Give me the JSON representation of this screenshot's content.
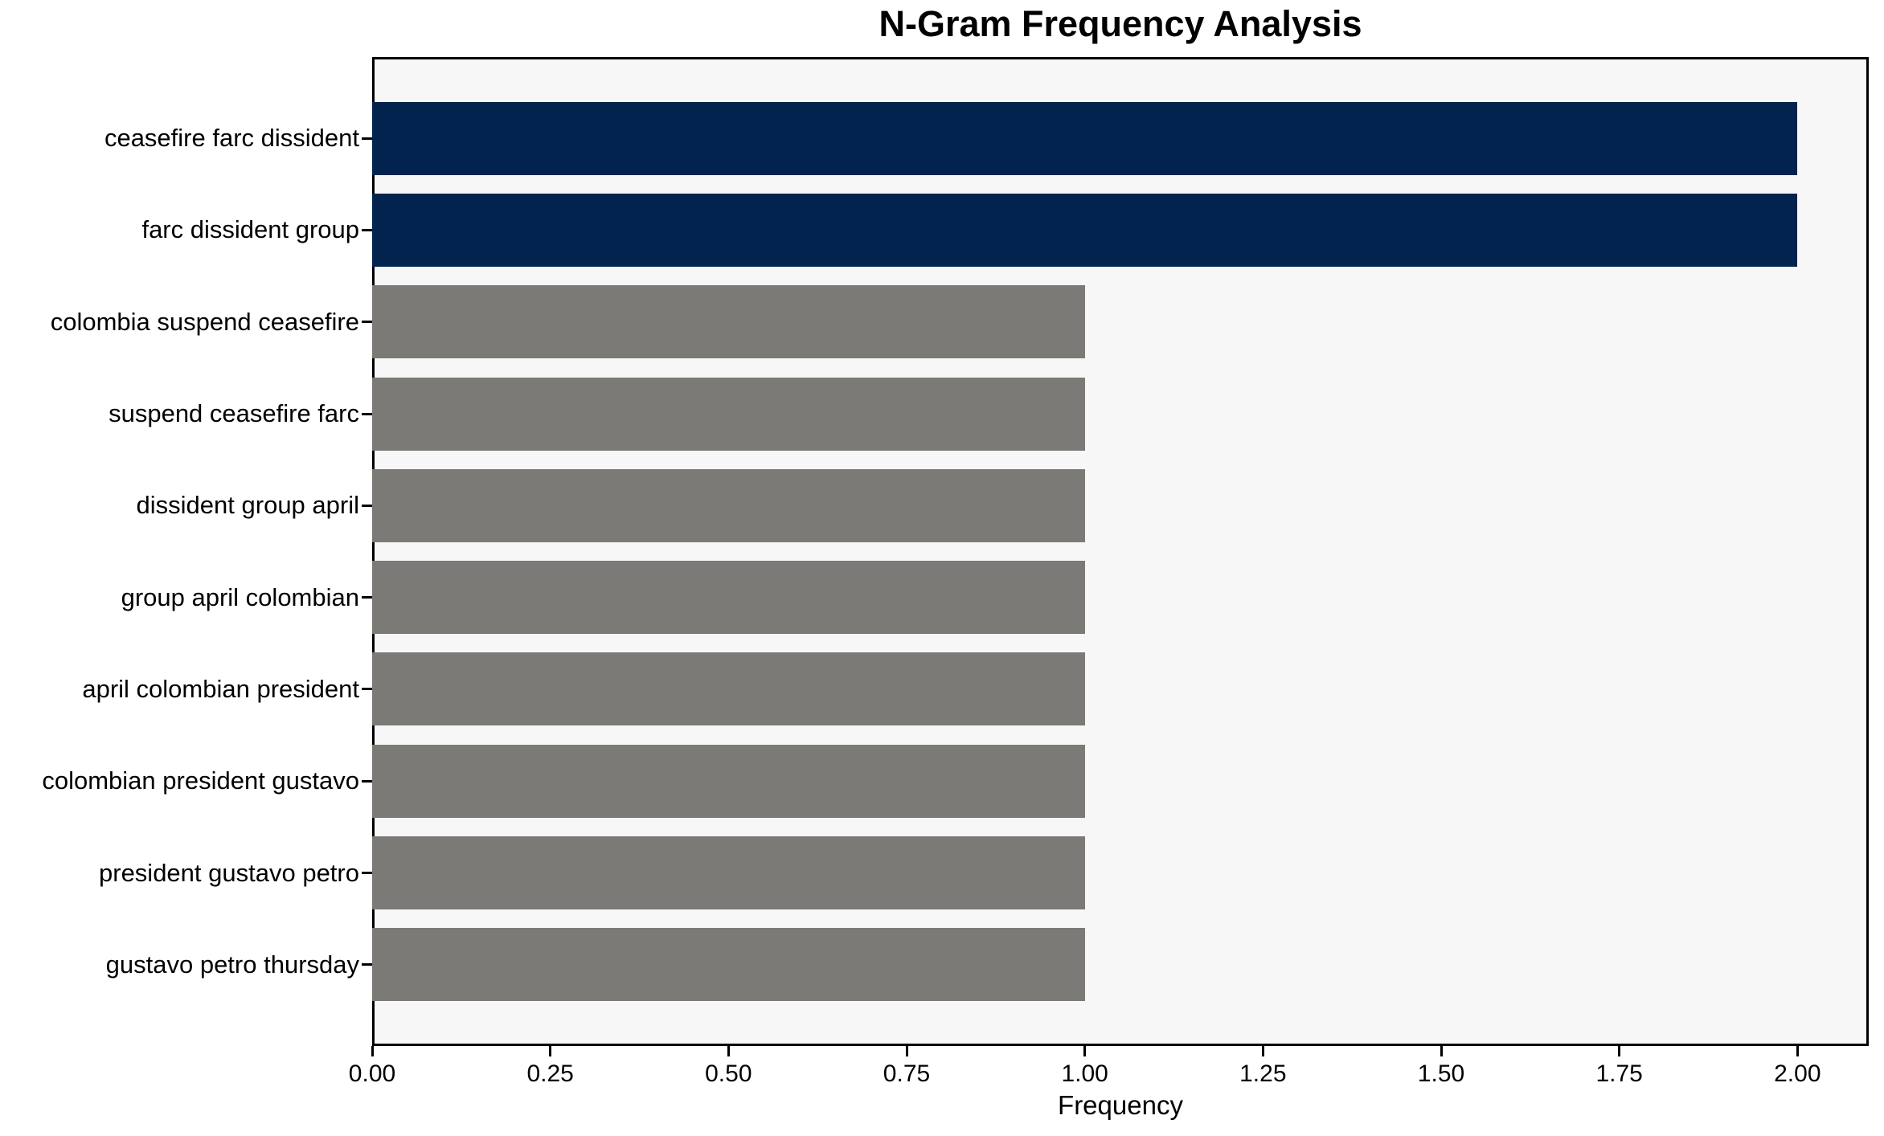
{
  "chart_data": {
    "type": "bar",
    "orientation": "horizontal",
    "title": "N-Gram Frequency Analysis",
    "xlabel": "Frequency",
    "ylabel": "",
    "categories": [
      "ceasefire farc dissident",
      "farc dissident group",
      "colombia suspend ceasefire",
      "suspend ceasefire farc",
      "dissident group april",
      "group april colombian",
      "april colombian president",
      "colombian president gustavo",
      "president gustavo petro",
      "gustavo petro thursday"
    ],
    "values": [
      2,
      2,
      1,
      1,
      1,
      1,
      1,
      1,
      1,
      1
    ],
    "bar_colors": [
      "#02234d",
      "#02234d",
      "#7b7a77",
      "#7b7a77",
      "#7b7a77",
      "#7b7a77",
      "#7b7a77",
      "#7b7a77",
      "#7b7a77",
      "#7b7a77"
    ],
    "xlim": [
      0,
      2.1
    ],
    "xticks": [
      0,
      0.25,
      0.5,
      0.75,
      1.0,
      1.25,
      1.5,
      1.75,
      2.0
    ],
    "xtick_labels": [
      "0.00",
      "0.25",
      "0.50",
      "0.75",
      "1.00",
      "1.25",
      "1.50",
      "1.75",
      "2.00"
    ],
    "grid": false,
    "legend": null,
    "colors": {
      "highlight": "#02234d",
      "default": "#7b7a77",
      "plot_background": "#f7f7f7",
      "figure_background": "#ffffff",
      "spine": "#000000",
      "text": "#000000"
    }
  }
}
